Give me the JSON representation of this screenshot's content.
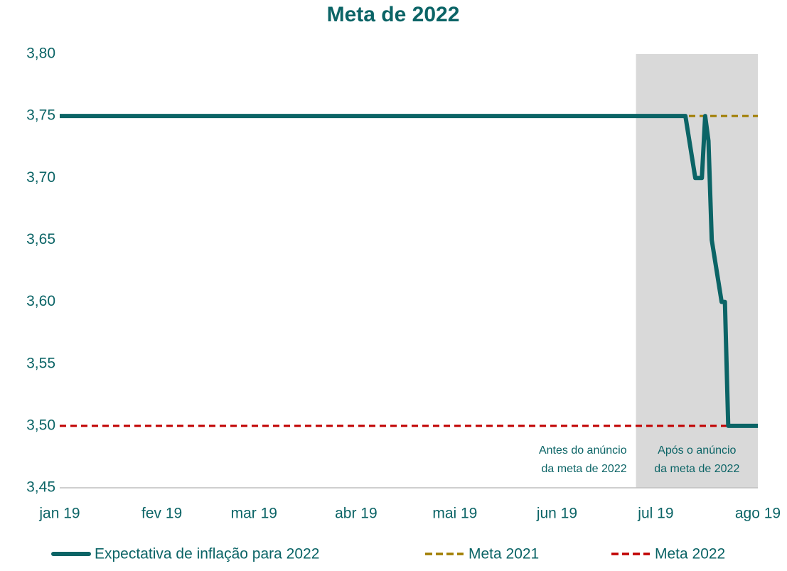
{
  "chart_data": {
    "type": "line",
    "title": "Meta de 2022",
    "xlim": [
      0,
      212
    ],
    "xticks": [
      {
        "value": 0,
        "label": "jan 19"
      },
      {
        "value": 31,
        "label": "fev 19"
      },
      {
        "value": 59,
        "label": "mar 19"
      },
      {
        "value": 90,
        "label": "abr 19"
      },
      {
        "value": 120,
        "label": "mai 19"
      },
      {
        "value": 151,
        "label": "jun 19"
      },
      {
        "value": 181,
        "label": "jul 19"
      },
      {
        "value": 212,
        "label": "ago 19"
      }
    ],
    "ylim": [
      3.45,
      3.8
    ],
    "yticks": [
      {
        "value": 3.45,
        "label": "3,45"
      },
      {
        "value": 3.5,
        "label": "3,50"
      },
      {
        "value": 3.55,
        "label": "3,55"
      },
      {
        "value": 3.6,
        "label": "3,60"
      },
      {
        "value": 3.65,
        "label": "3,65"
      },
      {
        "value": 3.7,
        "label": "3,70"
      },
      {
        "value": 3.75,
        "label": "3,75"
      },
      {
        "value": 3.8,
        "label": "3,80"
      }
    ],
    "grid": false,
    "legend": "bottom",
    "shaded_span": {
      "xlim": [
        175,
        212
      ],
      "color": "#d9d9d9"
    },
    "annotations": [
      [
        "Antes do anúncio",
        "da meta de 2022"
      ],
      [
        "Após o anúncio",
        "da meta de 2022"
      ]
    ],
    "series": [
      {
        "name": "Expectativa de inflação para 2022",
        "color": "#0b6466",
        "style": "solid",
        "x": [
          0,
          190,
          193,
          195,
          196,
          197,
          198,
          201,
          202,
          203,
          212
        ],
        "values": [
          3.75,
          3.75,
          3.7,
          3.7,
          3.75,
          3.73,
          3.65,
          3.6,
          3.6,
          3.5,
          3.5
        ]
      },
      {
        "name": "Meta 2021",
        "color": "#a07d00",
        "style": "dashed",
        "x": [
          0,
          212
        ],
        "values": [
          3.75,
          3.75
        ]
      },
      {
        "name": "Meta 2022",
        "color": "#c00000",
        "style": "dashed",
        "x": [
          0,
          212
        ],
        "values": [
          3.5,
          3.5
        ]
      }
    ]
  }
}
